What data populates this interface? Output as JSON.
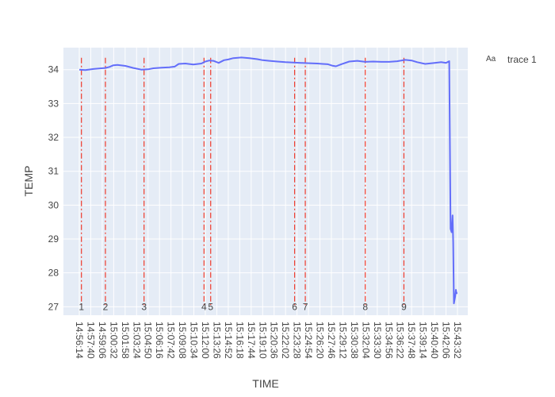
{
  "chart_data": {
    "type": "line",
    "title": "",
    "xlabel": "TIME",
    "ylabel": "TEMP",
    "ylim": [
      26.75,
      34.65
    ],
    "yticks": [
      27,
      28,
      29,
      30,
      31,
      32,
      33,
      34
    ],
    "grid": true,
    "legend_position": "top-right",
    "xticks": [
      "14:56:14",
      "14:57:40",
      "14:59:06",
      "15:00:32",
      "15:01:58",
      "15:03:24",
      "15:04:50",
      "15:06:16",
      "15:07:42",
      "15:09:08",
      "15:10:34",
      "15:12:00",
      "15:13:26",
      "15:14:52",
      "15:16:18",
      "15:17:44",
      "15:19:10",
      "15:20:36",
      "15:22:02",
      "15:23:28",
      "15:24:54",
      "15:26:20",
      "15:27:46",
      "15:29:12",
      "15:30:38",
      "15:32:04",
      "15:33:30",
      "15:34:56",
      "15:36:22",
      "15:37:48",
      "15:39:14",
      "15:40:40",
      "15:42:06",
      "15:43:32"
    ],
    "series": [
      {
        "name": "trace 1",
        "color": "#636efa",
        "x": [
          "14:56:14",
          "14:57:00",
          "14:58:00",
          "14:59:00",
          "14:59:30",
          "15:00:00",
          "15:00:30",
          "15:01:00",
          "15:02:00",
          "15:03:00",
          "15:04:00",
          "15:04:50",
          "15:05:30",
          "15:06:30",
          "15:07:30",
          "15:08:10",
          "15:08:40",
          "15:09:30",
          "15:10:30",
          "15:11:30",
          "15:12:00",
          "15:12:30",
          "15:13:00",
          "15:13:40",
          "15:14:20",
          "15:14:52",
          "15:15:30",
          "15:16:30",
          "15:17:30",
          "15:18:30",
          "15:19:10",
          "15:20:00",
          "15:21:00",
          "15:22:00",
          "15:23:00",
          "15:24:00",
          "15:25:00",
          "15:26:00",
          "15:26:40",
          "15:27:20",
          "15:27:50",
          "15:28:20",
          "15:29:00",
          "15:30:00",
          "15:31:00",
          "15:32:00",
          "15:33:00",
          "15:34:00",
          "15:35:00",
          "15:36:00",
          "15:37:00",
          "15:37:48",
          "15:38:30",
          "15:39:30",
          "15:40:40",
          "15:41:30",
          "15:42:06",
          "15:42:30",
          "15:42:40",
          "15:42:48",
          "15:42:55",
          "15:43:00",
          "15:43:05",
          "15:43:10",
          "15:43:15",
          "15:43:20",
          "15:43:25",
          "15:43:32"
        ],
        "values": [
          34.0,
          33.99,
          34.02,
          34.04,
          34.05,
          34.08,
          34.13,
          34.14,
          34.11,
          34.05,
          34.0,
          34.01,
          34.04,
          34.06,
          34.07,
          34.09,
          34.17,
          34.18,
          34.15,
          34.18,
          34.24,
          34.27,
          34.26,
          34.2,
          34.28,
          34.3,
          34.34,
          34.36,
          34.34,
          34.31,
          34.28,
          34.26,
          34.24,
          34.22,
          34.21,
          34.2,
          34.19,
          34.18,
          34.17,
          34.16,
          34.12,
          34.1,
          34.16,
          34.24,
          34.26,
          34.23,
          34.24,
          34.23,
          34.23,
          34.25,
          34.29,
          34.27,
          34.22,
          34.17,
          34.2,
          34.22,
          34.2,
          34.25,
          29.3,
          29.2,
          29.7,
          28.9,
          27.1,
          27.2,
          27.3,
          27.5,
          27.4,
          27.4
        ]
      }
    ],
    "markers": [
      {
        "label": "1",
        "x": "14:56:30"
      },
      {
        "label": "2",
        "x": "14:59:30"
      },
      {
        "label": "3",
        "x": "15:04:20"
      },
      {
        "label": "4",
        "x": "15:11:50"
      },
      {
        "label": "5",
        "x": "15:12:40"
      },
      {
        "label": "6",
        "x": "15:23:10"
      },
      {
        "label": "7",
        "x": "15:24:30"
      },
      {
        "label": "8",
        "x": "15:32:00"
      },
      {
        "label": "9",
        "x": "15:36:50"
      }
    ]
  }
}
